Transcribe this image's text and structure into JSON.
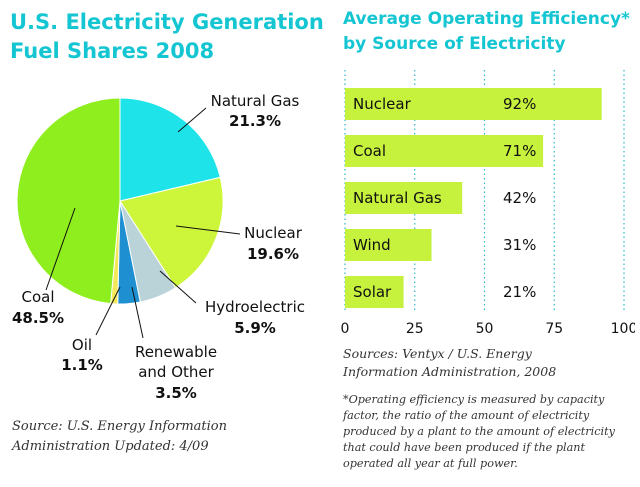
{
  "chart_data": [
    {
      "type": "pie",
      "title": [
        "U.S. Electricity Generation",
        "Fuel Shares 2008"
      ],
      "slices": [
        {
          "name": "Natural Gas",
          "value": 21.3,
          "value_label": "21.3%",
          "color": "#1ee3e8"
        },
        {
          "name": "Nuclear",
          "value": 19.6,
          "value_label": "19.6%",
          "color": "#cdf53a"
        },
        {
          "name": "Hydroelectric",
          "value": 5.9,
          "value_label": "5.9%",
          "color": "#b9d3d8"
        },
        {
          "name": "Renewable and Other",
          "label_lines": [
            "Renewable",
            "and Other"
          ],
          "value": 3.5,
          "value_label": "3.5%",
          "color": "#1e8fd0"
        },
        {
          "name": "Oil",
          "value": 1.1,
          "value_label": "1.1%",
          "color": "#f3e85a"
        },
        {
          "name": "Coal",
          "value": 48.5,
          "value_label": "48.5%",
          "color": "#8fee1d"
        }
      ],
      "source": [
        "Source: U.S. Energy Information",
        "Administration Updated: 4/09"
      ]
    },
    {
      "type": "bar",
      "orientation": "horizontal",
      "title": [
        "Average Operating Efficiency*",
        "by Source of Electricity"
      ],
      "categories": [
        "Nuclear",
        "Coal",
        "Natural Gas",
        "Wind",
        "Solar"
      ],
      "values": [
        92,
        71,
        42,
        31,
        21
      ],
      "value_labels": [
        "92%",
        "71%",
        "42%",
        "31%",
        "21%"
      ],
      "xlim": [
        0,
        100
      ],
      "ticks": [
        0,
        25,
        50,
        75,
        100
      ],
      "tick_labels": [
        "0",
        "25",
        "50",
        "75",
        "100"
      ],
      "grid": "dotted vertical",
      "bar_color": "#c6f13c",
      "source": [
        "Sources: Ventyx / U.S. Energy",
        "Information Administration, 2008"
      ],
      "footnote": [
        "*Operating efficiency is measured by capacity",
        "factor, the ratio of the amount of electricity",
        "produced by a plant to the amount of electricity",
        "that could have been produced if the plant",
        "operated all year at full power."
      ]
    }
  ],
  "colors": {
    "title": "#14c5d2",
    "text": "#111111",
    "grid": "#2bb8c8"
  }
}
